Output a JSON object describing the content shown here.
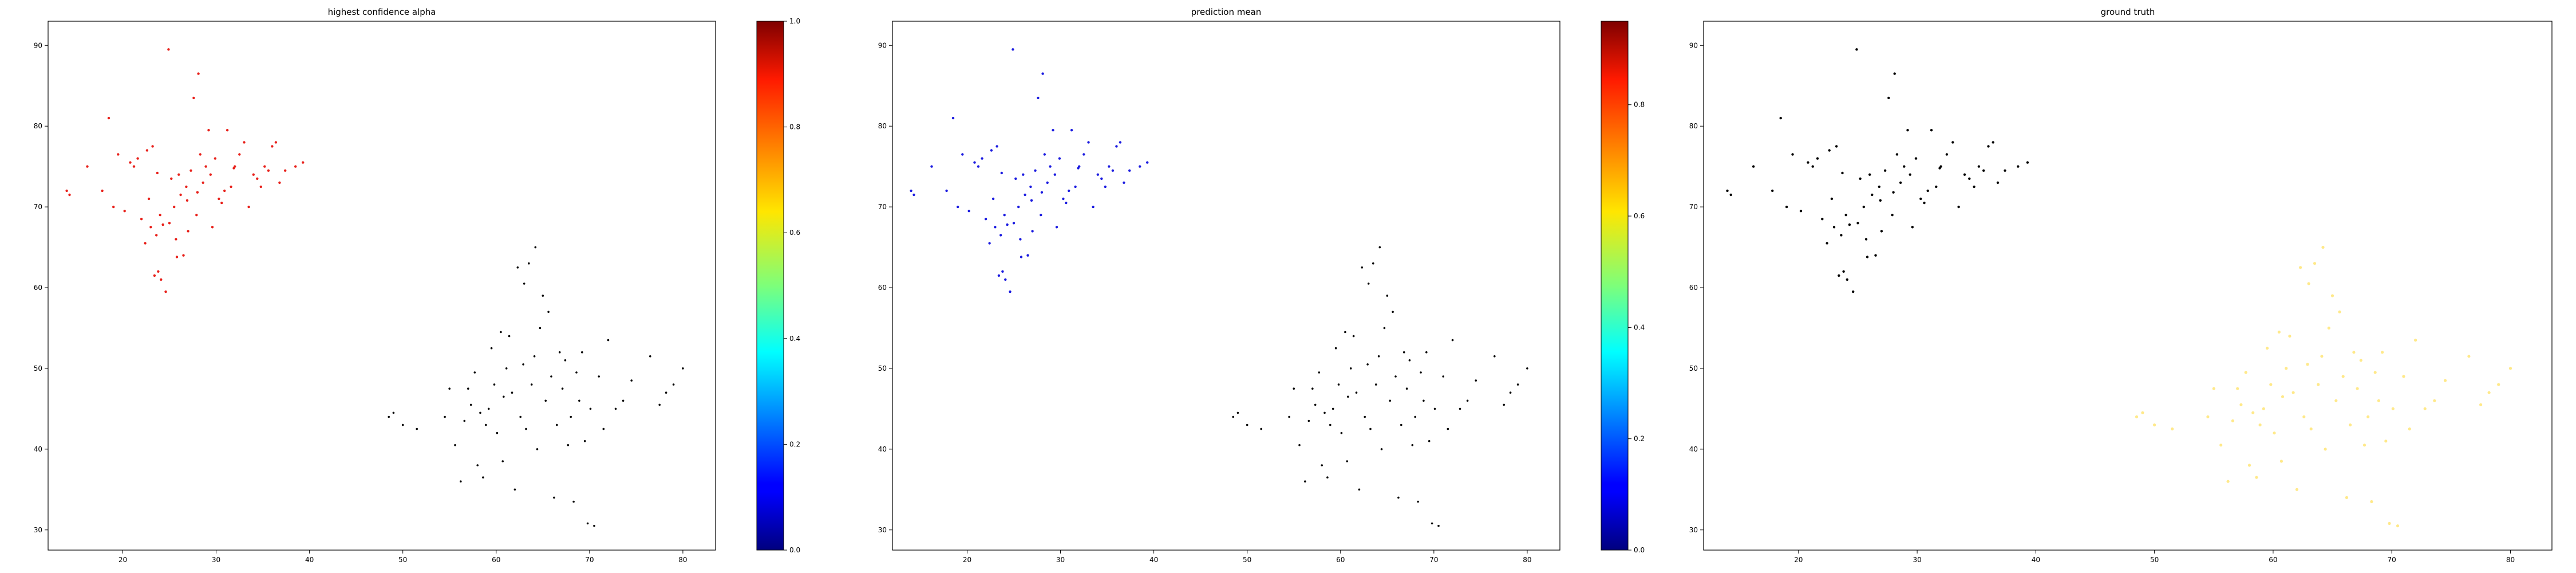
{
  "chart_data": [
    {
      "type": "scatter",
      "title": "highest confidence alpha",
      "xlabel": "",
      "ylabel": "",
      "xlim": [
        12.0,
        83.5
      ],
      "ylim": [
        27.5,
        93.0
      ],
      "xticks": [
        20,
        30,
        40,
        50,
        60,
        70,
        80
      ],
      "yticks": [
        30,
        40,
        50,
        60,
        70,
        80,
        90
      ],
      "grid": false,
      "color_rule": "upper-left cluster red (about 0.9 on the jet scale), lower-right cluster black"
    },
    {
      "type": "scatter",
      "title": "prediction mean",
      "xlabel": "",
      "ylabel": "",
      "xlim": [
        12.0,
        83.5
      ],
      "ylim": [
        27.5,
        93.0
      ],
      "xticks": [
        20,
        30,
        40,
        50,
        60,
        70,
        80
      ],
      "yticks": [
        30,
        40,
        50,
        60,
        70,
        80,
        90
      ],
      "grid": false,
      "color_rule": "upper-left cluster blue (about 0.1 on the jet scale), lower-right cluster black"
    },
    {
      "type": "scatter",
      "title": "ground truth",
      "xlabel": "",
      "ylabel": "",
      "xlim": [
        12.0,
        83.5
      ],
      "ylim": [
        27.5,
        93.0
      ],
      "xticks": [
        20,
        30,
        40,
        50,
        60,
        70,
        80
      ],
      "yticks": [
        30,
        40,
        50,
        60,
        70,
        80,
        90
      ],
      "grid": false,
      "color_rule": "upper-left cluster black, lower-right cluster pale yellow"
    }
  ],
  "colorbars": [
    {
      "cmap": "jet",
      "range": [
        0.0,
        1.0
      ],
      "ticks": [
        "0.0",
        "0.2",
        "0.4",
        "0.6",
        "0.8",
        "1.0"
      ]
    },
    {
      "cmap": "jet",
      "range": [
        0.0,
        0.95
      ],
      "ticks": [
        "0.0",
        "0.2",
        "0.4",
        "0.6",
        "0.8"
      ]
    }
  ],
  "points": {
    "cluster_a": [
      [
        14.0,
        72.0
      ],
      [
        14.3,
        71.5
      ],
      [
        16.2,
        75.0
      ],
      [
        17.8,
        72.0
      ],
      [
        18.5,
        81.0
      ],
      [
        19.0,
        70.0
      ],
      [
        19.5,
        76.5
      ],
      [
        20.2,
        69.5
      ],
      [
        20.8,
        75.5
      ],
      [
        21.2,
        75.0
      ],
      [
        21.6,
        76.0
      ],
      [
        22.0,
        68.5
      ],
      [
        22.4,
        65.5
      ],
      [
        22.8,
        71.0
      ],
      [
        23.0,
        67.5
      ],
      [
        23.2,
        77.5
      ],
      [
        23.4,
        61.5
      ],
      [
        23.6,
        66.5
      ],
      [
        23.8,
        62.0
      ],
      [
        24.0,
        69.0
      ],
      [
        24.3,
        67.8
      ],
      [
        24.6,
        59.5
      ],
      [
        24.9,
        89.5
      ],
      [
        25.0,
        68.0
      ],
      [
        25.2,
        73.5
      ],
      [
        25.5,
        70.0
      ],
      [
        25.8,
        63.8
      ],
      [
        26.0,
        74.0
      ],
      [
        26.2,
        71.5
      ],
      [
        26.5,
        64.0
      ],
      [
        26.8,
        72.5
      ],
      [
        27.0,
        67.0
      ],
      [
        27.3,
        74.5
      ],
      [
        27.6,
        83.5
      ],
      [
        27.9,
        69.0
      ],
      [
        28.1,
        86.5
      ],
      [
        28.3,
        76.5
      ],
      [
        28.6,
        73.0
      ],
      [
        28.9,
        75.0
      ],
      [
        29.2,
        79.5
      ],
      [
        29.6,
        67.5
      ],
      [
        29.9,
        76.0
      ],
      [
        30.3,
        71.0
      ],
      [
        30.6,
        70.5
      ],
      [
        30.9,
        72.0
      ],
      [
        31.2,
        79.5
      ],
      [
        31.6,
        72.5
      ],
      [
        32.0,
        75.0
      ],
      [
        32.5,
        76.5
      ],
      [
        33.0,
        78.0
      ],
      [
        33.5,
        70.0
      ],
      [
        34.0,
        74.0
      ],
      [
        34.4,
        73.5
      ],
      [
        34.8,
        72.5
      ],
      [
        35.2,
        75.0
      ],
      [
        35.6,
        74.5
      ],
      [
        36.0,
        77.5
      ],
      [
        36.4,
        78.0
      ],
      [
        36.8,
        73.0
      ],
      [
        37.4,
        74.5
      ],
      [
        38.5,
        75.0
      ],
      [
        39.3,
        75.5
      ],
      [
        22.6,
        77.0
      ],
      [
        24.1,
        61.0
      ],
      [
        26.9,
        70.8
      ],
      [
        29.4,
        74.0
      ],
      [
        31.9,
        74.8
      ],
      [
        25.7,
        66.0
      ],
      [
        28.0,
        71.8
      ],
      [
        23.7,
        74.2
      ]
    ],
    "cluster_b": [
      [
        48.5,
        44.0
      ],
      [
        49.0,
        44.5
      ],
      [
        50.0,
        43.0
      ],
      [
        51.5,
        42.5
      ],
      [
        54.5,
        44.0
      ],
      [
        55.0,
        47.5
      ],
      [
        55.6,
        40.5
      ],
      [
        56.2,
        36.0
      ],
      [
        56.6,
        43.5
      ],
      [
        57.0,
        47.5
      ],
      [
        57.3,
        45.5
      ],
      [
        57.7,
        49.5
      ],
      [
        58.0,
        38.0
      ],
      [
        58.3,
        44.5
      ],
      [
        58.6,
        36.5
      ],
      [
        58.9,
        43.0
      ],
      [
        59.2,
        45.0
      ],
      [
        59.5,
        52.5
      ],
      [
        59.8,
        48.0
      ],
      [
        60.1,
        42.0
      ],
      [
        60.5,
        54.5
      ],
      [
        60.8,
        46.5
      ],
      [
        61.1,
        50.0
      ],
      [
        61.4,
        54.0
      ],
      [
        61.7,
        47.0
      ],
      [
        62.0,
        35.0
      ],
      [
        62.3,
        62.5
      ],
      [
        62.6,
        44.0
      ],
      [
        62.9,
        50.5
      ],
      [
        63.2,
        42.5
      ],
      [
        63.5,
        63.0
      ],
      [
        63.8,
        48.0
      ],
      [
        64.1,
        51.5
      ],
      [
        64.4,
        40.0
      ],
      [
        64.7,
        55.0
      ],
      [
        65.0,
        59.0
      ],
      [
        65.3,
        46.0
      ],
      [
        65.6,
        57.0
      ],
      [
        65.9,
        49.0
      ],
      [
        66.2,
        34.0
      ],
      [
        66.5,
        43.0
      ],
      [
        66.8,
        52.0
      ],
      [
        67.1,
        47.5
      ],
      [
        67.4,
        51.0
      ],
      [
        67.7,
        40.5
      ],
      [
        68.0,
        44.0
      ],
      [
        68.3,
        33.5
      ],
      [
        68.6,
        49.5
      ],
      [
        68.9,
        46.0
      ],
      [
        69.2,
        52.0
      ],
      [
        69.5,
        41.0
      ],
      [
        69.8,
        30.8
      ],
      [
        70.1,
        45.0
      ],
      [
        70.5,
        30.5
      ],
      [
        71.0,
        49.0
      ],
      [
        71.5,
        42.5
      ],
      [
        72.0,
        53.5
      ],
      [
        72.8,
        45.0
      ],
      [
        73.6,
        46.0
      ],
      [
        74.5,
        48.5
      ],
      [
        76.5,
        51.5
      ],
      [
        77.5,
        45.5
      ],
      [
        78.2,
        47.0
      ],
      [
        79.0,
        48.0
      ],
      [
        80.0,
        50.0
      ],
      [
        63.0,
        60.5
      ],
      [
        64.2,
        65.0
      ],
      [
        60.7,
        38.5
      ]
    ]
  }
}
